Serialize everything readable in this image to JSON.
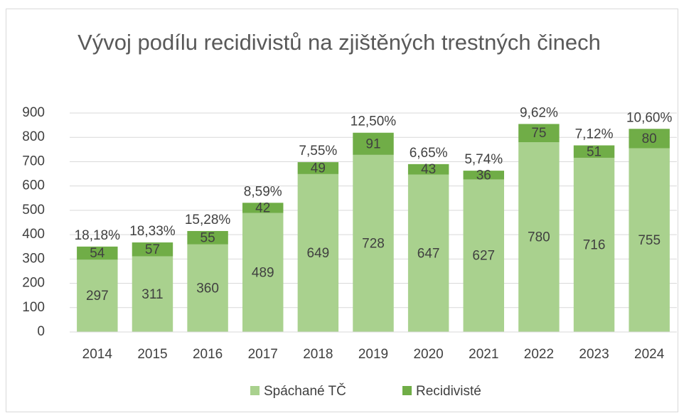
{
  "chart_data": {
    "type": "stacked_bar",
    "title": "Vývoj podílu recidivistů na zjištěných trestných činech",
    "categories": [
      "2014",
      "2015",
      "2016",
      "2017",
      "2018",
      "2019",
      "2020",
      "2021",
      "2022",
      "2023",
      "2024"
    ],
    "series": [
      {
        "name": "Spáchané TČ",
        "color": "#a9d18e",
        "values": [
          297,
          311,
          360,
          489,
          649,
          728,
          647,
          627,
          780,
          716,
          755
        ]
      },
      {
        "name": "Recidivisté",
        "color": "#70ad47",
        "values": [
          54,
          57,
          55,
          42,
          49,
          91,
          43,
          36,
          75,
          51,
          80
        ]
      }
    ],
    "annotations": [
      "18,18%",
      "18,33%",
      "15,28%",
      "8,59%",
      "7,55%",
      "12,50%",
      "6,65%",
      "5,74%",
      "9,62%",
      "7,12%",
      "10,60%"
    ],
    "ylim": [
      0,
      900
    ],
    "yticks": [
      0,
      100,
      200,
      300,
      400,
      500,
      600,
      700,
      800,
      900
    ],
    "grid": true,
    "legend": "bottom"
  }
}
